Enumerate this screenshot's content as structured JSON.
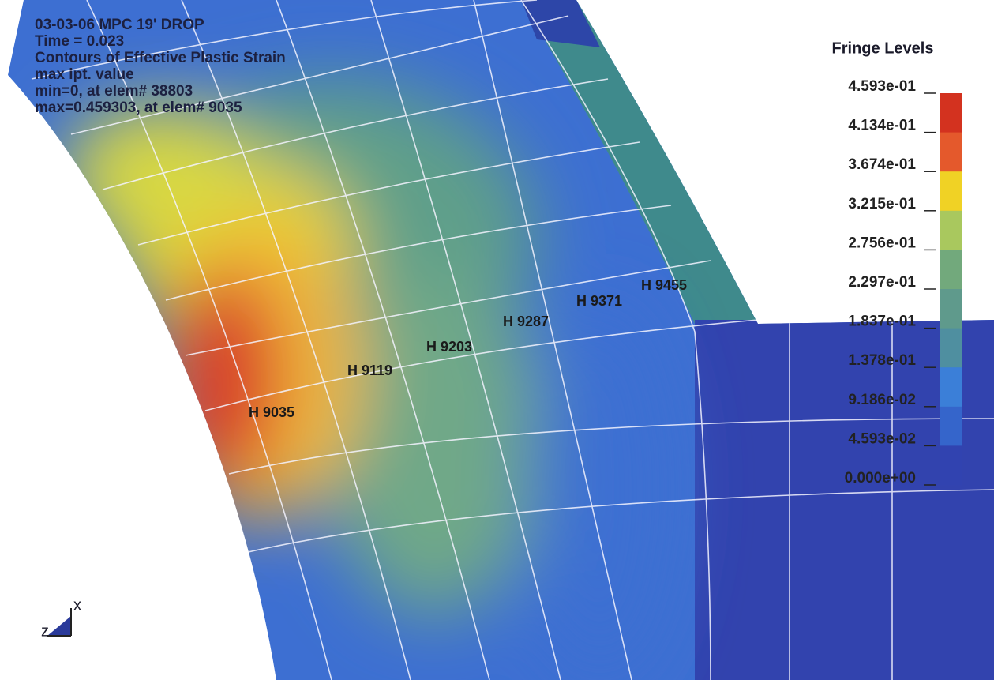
{
  "header": {
    "lines": [
      "03-03-06 MPC 19' DROP",
      "Time =       0.023",
      "Contours of Effective Plastic Strain",
      "max ipt. value",
      " min=0, at elem# 38803",
      " max=0.459303, at elem# 9035"
    ]
  },
  "legend": {
    "title": "Fringe Levels",
    "levels": [
      "4.593e-01",
      "4.134e-01",
      "3.674e-01",
      "3.215e-01",
      "2.756e-01",
      "2.297e-01",
      "1.837e-01",
      "1.378e-01",
      "9.186e-02",
      "4.593e-02",
      "0.000e+00"
    ]
  },
  "elements": [
    "H 9035",
    "H 9119",
    "H 9203",
    "H 9287",
    "H 9371",
    "H 9455"
  ],
  "triad": {
    "x": "x",
    "z": "z"
  }
}
